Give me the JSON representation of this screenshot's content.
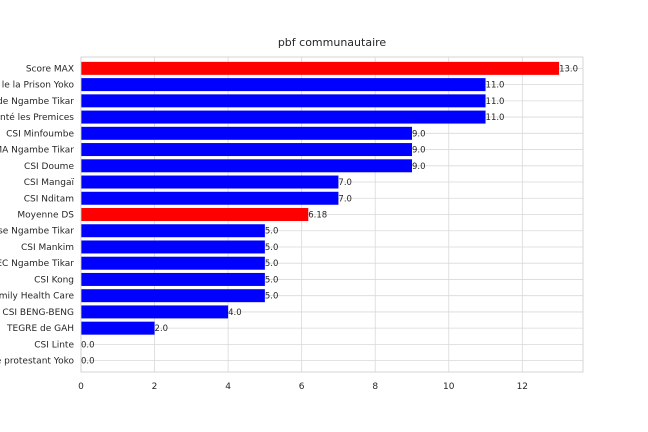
{
  "chart_data": {
    "type": "bar",
    "orientation": "horizontal",
    "title": "pbf communautaire",
    "xlabel": "",
    "ylabel": "",
    "xlim": [
      0,
      13.65
    ],
    "xticks": [
      0,
      2,
      4,
      6,
      8,
      10,
      12
    ],
    "grid": true,
    "colors": {
      "default": "#0000ff",
      "highlight": "#ff0000"
    },
    "bars": [
      {
        "category": "Score MAX",
        "value": 13.0,
        "label": "13.0",
        "color": "#ff0000"
      },
      {
        "category": "le la Prison Yoko",
        "value": 11.0,
        "label": "11.0",
        "color": "#0000ff"
      },
      {
        "category": "de Ngambe Tikar",
        "value": 11.0,
        "label": "11.0",
        "color": "#0000ff"
      },
      {
        "category": "nté les Premices",
        "value": 11.0,
        "label": "11.0",
        "color": "#0000ff"
      },
      {
        "category": "CSI Minfoumbe",
        "value": 9.0,
        "label": "9.0",
        "color": "#0000ff"
      },
      {
        "category": "MA Ngambe Tikar",
        "value": 9.0,
        "label": "9.0",
        "color": "#0000ff"
      },
      {
        "category": "CSI Doume",
        "value": 9.0,
        "label": "9.0",
        "color": "#0000ff"
      },
      {
        "category": "CSI Mangaï",
        "value": 7.0,
        "label": "7.0",
        "color": "#0000ff"
      },
      {
        "category": "CSI Nditam",
        "value": 7.0,
        "label": "7.0",
        "color": "#0000ff"
      },
      {
        "category": "Moyenne DS",
        "value": 6.18,
        "label": "6.18",
        "color": "#ff0000"
      },
      {
        "category": "se Ngambe Tikar",
        "value": 5.0,
        "label": "5.0",
        "color": "#0000ff"
      },
      {
        "category": "CSI Mankim",
        "value": 5.0,
        "label": "5.0",
        "color": "#0000ff"
      },
      {
        "category": "EC Ngambe Tikar",
        "value": 5.0,
        "label": "5.0",
        "color": "#0000ff"
      },
      {
        "category": "CSI Kong",
        "value": 5.0,
        "label": "5.0",
        "color": "#0000ff"
      },
      {
        "category": "mily Health Care",
        "value": 5.0,
        "label": "5.0",
        "color": "#0000ff"
      },
      {
        "category": "CSI BENG-BENG",
        "value": 4.0,
        "label": "4.0",
        "color": "#0000ff"
      },
      {
        "category": "TEGRE  de GAH",
        "value": 2.0,
        "label": "2.0",
        "color": "#0000ff"
      },
      {
        "category": "CSI Linte",
        "value": 0.0,
        "label": "0.0",
        "color": "#0000ff"
      },
      {
        "category": "e protestant Yoko",
        "value": 0.0,
        "label": "0.0",
        "color": "#0000ff"
      }
    ]
  }
}
